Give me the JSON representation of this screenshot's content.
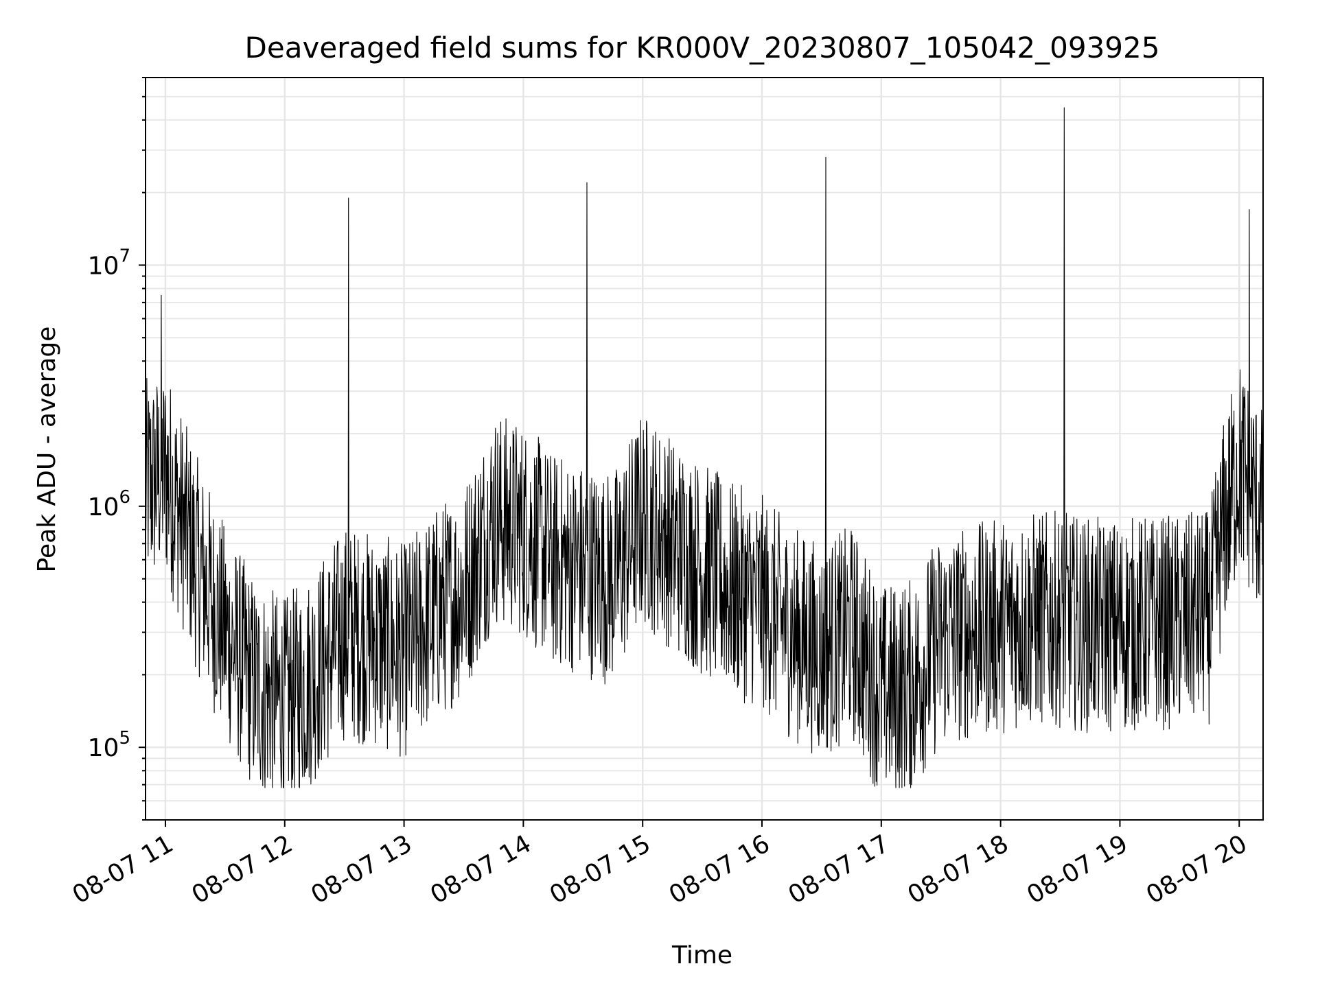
{
  "chart_data": {
    "type": "line",
    "title": "Deaveraged field sums for KR000V_20230807_105042_093925",
    "xlabel": "Time",
    "ylabel": "Peak ADU - average",
    "x_tick_labels": [
      "08-07 11",
      "08-07 12",
      "08-07 13",
      "08-07 14",
      "08-07 15",
      "08-07 16",
      "08-07 17",
      "08-07 18",
      "08-07 19",
      "08-07 20"
    ],
    "y_tick_labels": [
      {
        "base": "10",
        "exp": "5",
        "value": 100000
      },
      {
        "base": "10",
        "exp": "6",
        "value": 1000000
      },
      {
        "base": "10",
        "exp": "7",
        "value": 10000000
      }
    ],
    "x_scale": "time",
    "y_scale": "log",
    "xlim": [
      "2023-08-07 10:50",
      "2023-08-07 20:12"
    ],
    "ylim": [
      50000,
      60000000
    ],
    "grid": true,
    "line_color": "#000000",
    "grid_color": "#e6e6e6",
    "series": [
      {
        "x": [
          "2023-08-07 10:50",
          "2023-08-07 11:00",
          "2023-08-07 11:15",
          "2023-08-07 11:30",
          "2023-08-07 11:45",
          "2023-08-07 12:00",
          "2023-08-07 12:15",
          "2023-08-07 12:30",
          "2023-08-07 12:45",
          "2023-08-07 13:00",
          "2023-08-07 13:15",
          "2023-08-07 13:30",
          "2023-08-07 13:45",
          "2023-08-07 14:00",
          "2023-08-07 14:15",
          "2023-08-07 14:30",
          "2023-08-07 14:45",
          "2023-08-07 15:00",
          "2023-08-07 15:15",
          "2023-08-07 15:30",
          "2023-08-07 15:45",
          "2023-08-07 16:00",
          "2023-08-07 16:15",
          "2023-08-07 16:30",
          "2023-08-07 16:45",
          "2023-08-07 17:00",
          "2023-08-07 17:15",
          "2023-08-07 17:30",
          "2023-08-07 17:45",
          "2023-08-07 18:00",
          "2023-08-07 18:15",
          "2023-08-07 18:30",
          "2023-08-07 18:45",
          "2023-08-07 19:00",
          "2023-08-07 19:15",
          "2023-08-07 19:30",
          "2023-08-07 19:45",
          "2023-08-07 19:52",
          "2023-08-07 20:00",
          "2023-08-07 20:12"
        ],
        "y": [
          1200000,
          1400000,
          600000,
          300000,
          180000,
          150000,
          200000,
          300000,
          280000,
          250000,
          350000,
          450000,
          900000,
          800000,
          600000,
          550000,
          500000,
          900000,
          700000,
          550000,
          450000,
          400000,
          300000,
          250000,
          300000,
          170000,
          180000,
          280000,
          300000,
          320000,
          340000,
          340000,
          320000,
          320000,
          330000,
          330000,
          350000,
          800000,
          1500000,
          900000
        ]
      }
    ],
    "spikes": [
      {
        "x": "2023-08-07 12:32",
        "y": 19000000
      },
      {
        "x": "2023-08-07 14:32",
        "y": 22000000
      },
      {
        "x": "2023-08-07 16:32",
        "y": 28000000
      },
      {
        "x": "2023-08-07 18:32",
        "y": 45000000
      },
      {
        "x": "2023-08-07 20:05",
        "y": 17000000
      },
      {
        "x": "2023-08-07 10:58",
        "y": 7500000
      }
    ]
  }
}
